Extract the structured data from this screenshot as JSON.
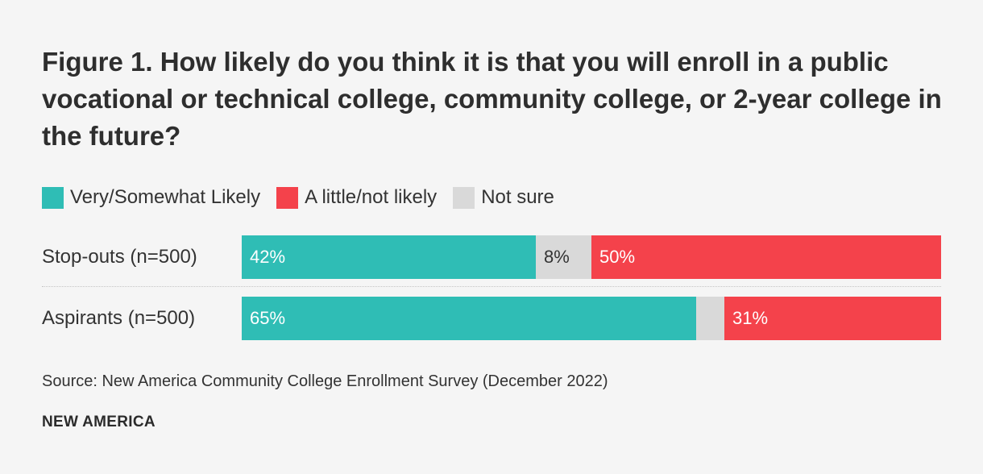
{
  "chart_data": {
    "type": "bar",
    "orientation": "horizontal",
    "stacked": true,
    "title": "Figure 1. How likely do you think it is that you will enroll in a public vocational or technical college, community college, or 2-year college in the future?",
    "categories": [
      "Stop-outs (n=500)",
      "Aspirants (n=500)"
    ],
    "series": [
      {
        "name": "Very/Somewhat Likely",
        "color": "#2fbdb5",
        "text_color": "#ffffff",
        "values": [
          42,
          65
        ],
        "labels": [
          "42%",
          "65%"
        ]
      },
      {
        "name": "Not sure",
        "color": "#d9d9d9",
        "text_color": "#333333",
        "values": [
          8,
          4
        ],
        "labels": [
          "8%",
          ""
        ]
      },
      {
        "name": "A little/not likely",
        "color": "#f4424b",
        "text_color": "#ffffff",
        "values": [
          50,
          31
        ],
        "labels": [
          "50%",
          "31%"
        ]
      }
    ],
    "legend_order": [
      "Very/Somewhat Likely",
      "A little/not likely",
      "Not sure"
    ],
    "xlim": [
      0,
      100
    ],
    "source": "Source: New America Community College Enrollment Survey (December 2022)",
    "brand": "NEW AMERICA"
  }
}
